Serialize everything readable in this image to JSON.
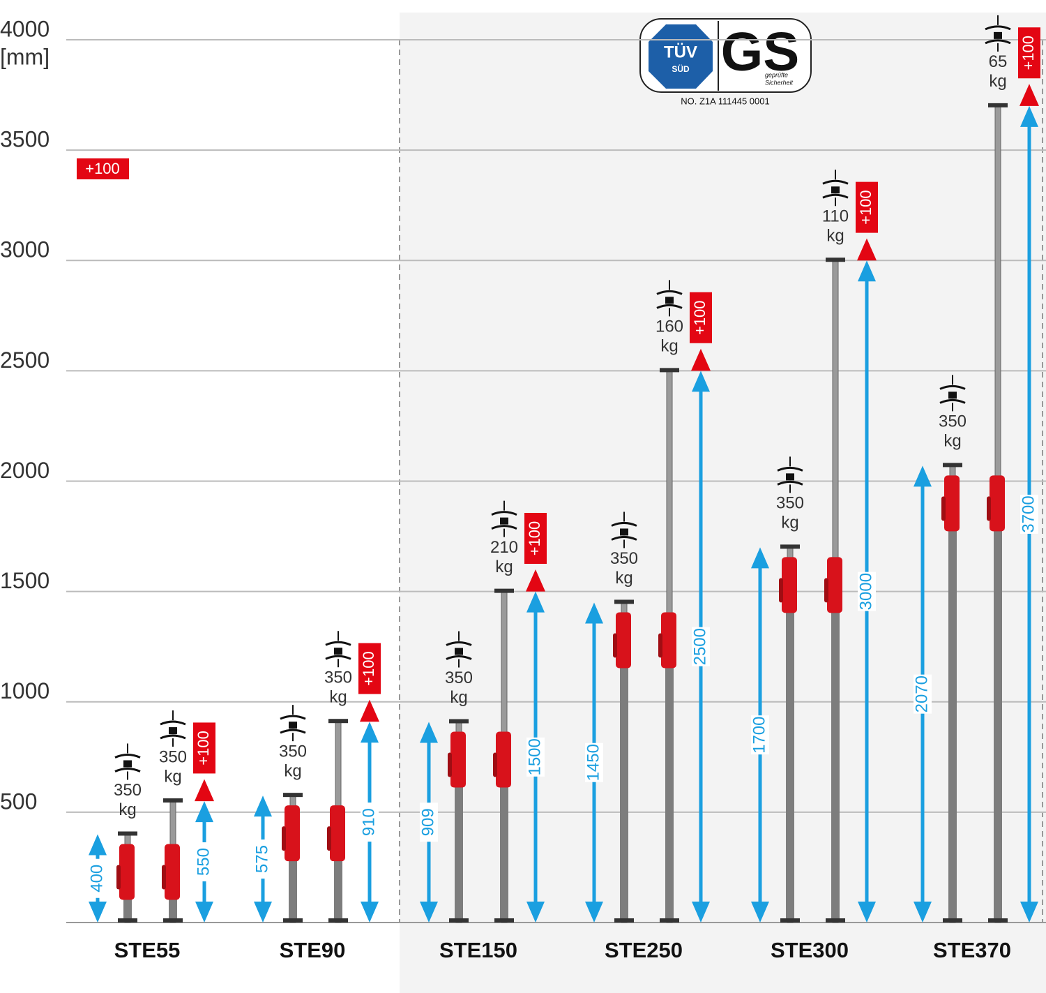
{
  "chart_data": {
    "type": "prop-range",
    "y_unit": "[mm]",
    "ylim": [
      0,
      4000
    ],
    "yticks": [
      500,
      1000,
      1500,
      2000,
      2500,
      3000,
      3500,
      4000
    ],
    "grid": true,
    "categories": [
      "STE55",
      "STE90",
      "STE150",
      "STE250",
      "STE300",
      "STE370"
    ],
    "load_unit": "kg",
    "series": [
      {
        "color": "#1a9fe0",
        "values": [
          400,
          575,
          909,
          1450,
          1700,
          2070
        ],
        "loads": [
          350,
          350,
          350,
          350,
          350,
          350
        ]
      },
      {
        "color": "#1a9fe0",
        "values": [
          550,
          910,
          1500,
          2500,
          3000,
          3700
        ],
        "loads": [
          350,
          350,
          210,
          160,
          110,
          65
        ],
        "extension_color": "#e30613",
        "extensions": [
          100,
          100,
          100,
          100,
          100,
          100
        ],
        "extension_labels": [
          "+100",
          "+100",
          "+100",
          "+100",
          "+100",
          "+100"
        ]
      }
    ],
    "legend_label": "+100"
  },
  "certification": {
    "tuv": "TÜV",
    "sud": "SÜD",
    "gs": "GS",
    "gs_caption": [
      "geprüfte",
      "Sicherheit"
    ],
    "number": "NO. Z1A 111445 0001"
  }
}
